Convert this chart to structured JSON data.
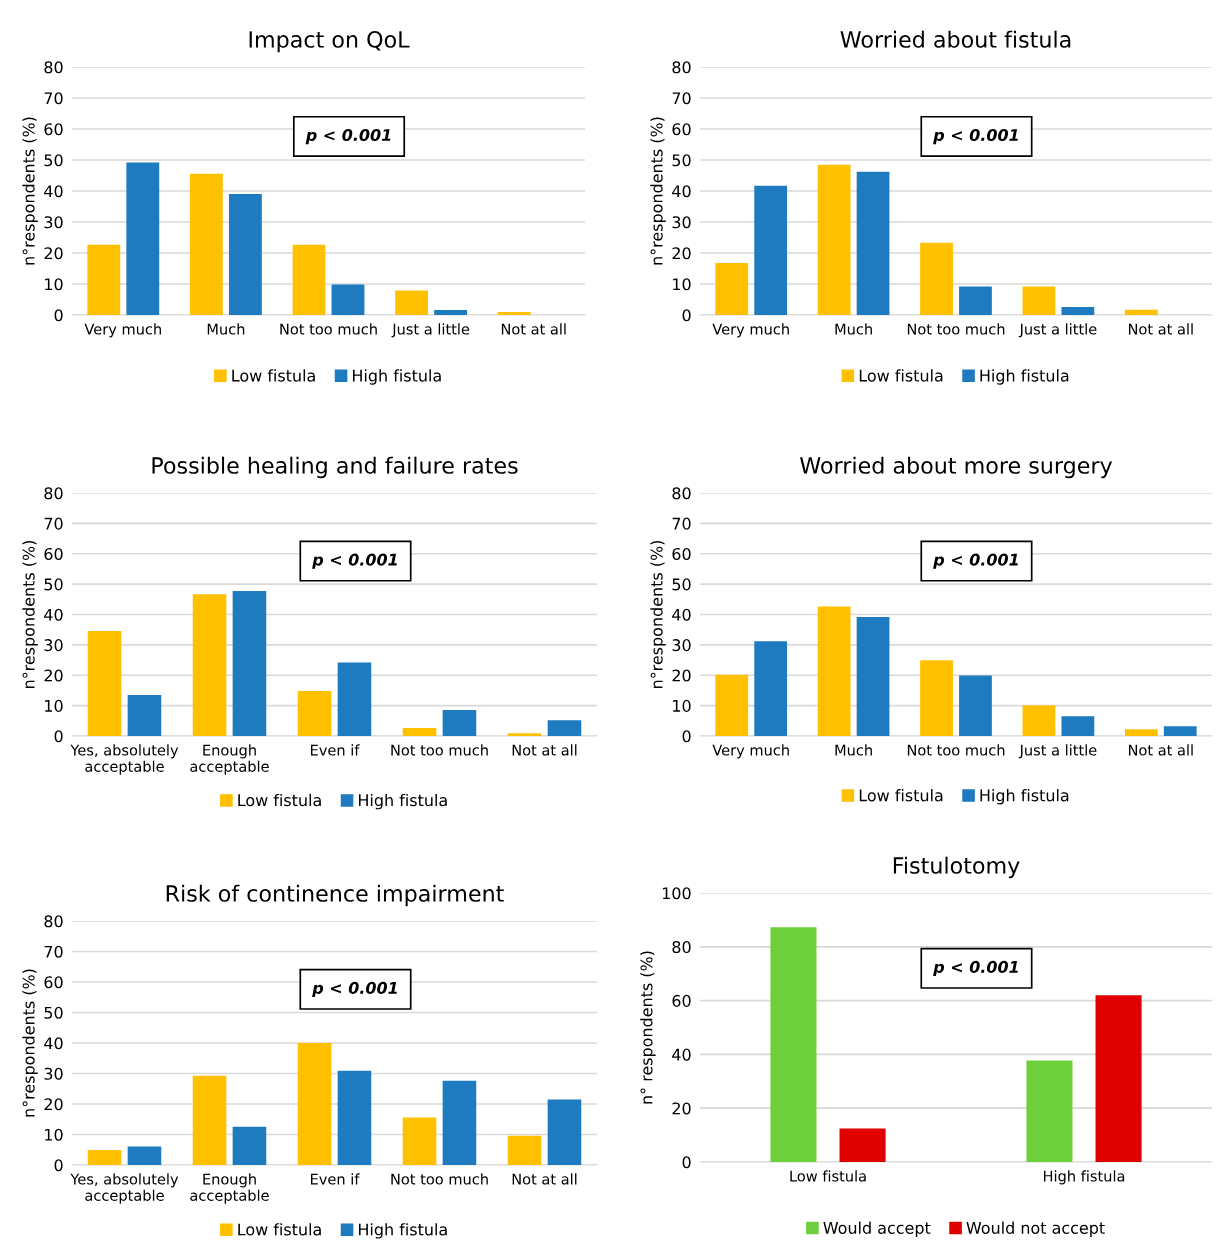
{
  "chart_data": [
    {
      "type": "bar",
      "title": "Impact on QoL",
      "ylabel": "n°respondents (%)",
      "categories": [
        "Very much",
        "Much",
        "Not too much",
        "Just a little",
        "Not at all"
      ],
      "series": [
        {
          "name": "Low fistula",
          "color": "#ffc000",
          "values": [
            22.7,
            45.6,
            22.7,
            7.9,
            1.0
          ]
        },
        {
          "name": "High fistula",
          "color": "#1f7bbf",
          "values": [
            49.2,
            39.0,
            9.8,
            1.6,
            0
          ]
        }
      ],
      "ylim": [
        0,
        80
      ],
      "yticks": [
        0,
        10,
        20,
        30,
        40,
        50,
        60,
        70,
        80
      ],
      "grid": "y",
      "legend": "bottom",
      "annotations": [
        "p < 0.001"
      ]
    },
    {
      "type": "bar",
      "title": "Worried about fistula",
      "ylabel": "n°respondents (%)",
      "categories": [
        "Very much",
        "Much",
        "Not too much",
        "Just a little",
        "Not at all"
      ],
      "series": [
        {
          "name": "Low fistula",
          "color": "#ffc000",
          "values": [
            16.8,
            48.5,
            23.3,
            9.2,
            1.7
          ]
        },
        {
          "name": "High fistula",
          "color": "#1f7bbf",
          "values": [
            41.7,
            46.2,
            9.2,
            2.6,
            0
          ]
        }
      ],
      "ylim": [
        0,
        80
      ],
      "yticks": [
        0,
        10,
        20,
        30,
        40,
        50,
        60,
        70,
        80
      ],
      "grid": "y",
      "legend": "bottom",
      "annotations": [
        "p < 0.001"
      ]
    },
    {
      "type": "bar",
      "title": "Possible healing and failure rates",
      "ylabel": "n°respondents (%)",
      "categories": [
        "Yes, absolutely acceptable",
        "Enough acceptable",
        "Even if",
        "Not too much",
        "Not at all"
      ],
      "series": [
        {
          "name": "Low fistula",
          "color": "#ffc000",
          "values": [
            34.6,
            46.7,
            14.8,
            2.6,
            0.9
          ]
        },
        {
          "name": "High fistula",
          "color": "#1f7bbf",
          "values": [
            13.5,
            47.7,
            24.2,
            8.6,
            5.2
          ]
        }
      ],
      "ylim": [
        0,
        80
      ],
      "yticks": [
        0,
        10,
        20,
        30,
        40,
        50,
        60,
        70,
        80
      ],
      "grid": "y",
      "legend": "bottom",
      "annotations": [
        "p < 0.001"
      ]
    },
    {
      "type": "bar",
      "title": "Worried about more surgery",
      "ylabel": "n°respondents (%)",
      "categories": [
        "Very much",
        "Much",
        "Not too much",
        "Just a little",
        "Not at all"
      ],
      "series": [
        {
          "name": "Low fistula",
          "color": "#ffc000",
          "values": [
            20.2,
            42.6,
            24.9,
            10.1,
            2.2
          ]
        },
        {
          "name": "High fistula",
          "color": "#1f7bbf",
          "values": [
            31.2,
            39.2,
            19.9,
            6.5,
            3.2
          ]
        }
      ],
      "ylim": [
        0,
        80
      ],
      "yticks": [
        0,
        10,
        20,
        30,
        40,
        50,
        60,
        70,
        80
      ],
      "grid": "y",
      "legend": "bottom",
      "annotations": [
        "p < 0.001"
      ]
    },
    {
      "type": "bar",
      "title": "Risk of continence impairment",
      "ylabel": "n°respondents (%)",
      "categories": [
        "Yes, absolutely acceptable",
        "Enough acceptable",
        "Even if",
        "Not too much",
        "Not at all"
      ],
      "series": [
        {
          "name": "Low fistula",
          "color": "#ffc000",
          "values": [
            4.9,
            29.3,
            40.0,
            15.6,
            9.6
          ]
        },
        {
          "name": "High fistula",
          "color": "#1f7bbf",
          "values": [
            6.1,
            12.5,
            30.9,
            27.6,
            21.5
          ]
        }
      ],
      "ylim": [
        0,
        80
      ],
      "yticks": [
        0,
        10,
        20,
        30,
        40,
        50,
        60,
        70,
        80
      ],
      "grid": "y",
      "legend": "bottom",
      "annotations": [
        "p < 0.001"
      ]
    },
    {
      "type": "bar",
      "title": "Fistulotomy",
      "ylabel": "n° respondents (%)",
      "categories": [
        "Low fistula",
        "High fistula"
      ],
      "series": [
        {
          "name": "Would accept",
          "color": "#6ecf3c",
          "values": [
            87.3,
            37.7
          ]
        },
        {
          "name": "Would not accept",
          "color": "#e00000",
          "values": [
            12.5,
            62.0
          ]
        }
      ],
      "ylim": [
        0,
        100
      ],
      "yticks": [
        0,
        20,
        40,
        60,
        80,
        100
      ],
      "grid": "y",
      "legend": "bottom",
      "annotations": [
        "p < 0.001"
      ]
    }
  ]
}
